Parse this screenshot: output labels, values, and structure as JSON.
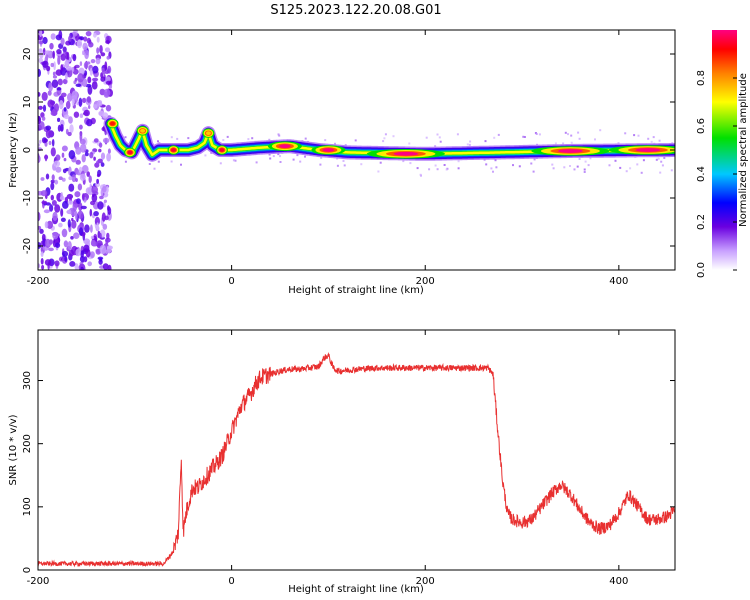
{
  "title": "S125.2023.122.20.08.G01",
  "chart_data": [
    {
      "type": "heatmap",
      "xlabel": "Height of straight line (km)",
      "ylabel": "Frequency (Hz)",
      "xlim": [
        -200,
        458
      ],
      "ylim": [
        -25,
        25
      ],
      "xticks": [
        -200,
        0,
        200,
        400
      ],
      "yticks": [
        -20,
        -10,
        0,
        10,
        20
      ],
      "colorbar": {
        "label": "Normalized spectral amplitude",
        "range": [
          0,
          1
        ],
        "ticks": [
          "0.0",
          "0.2",
          "0.4",
          "0.6",
          "0.8"
        ],
        "colors": [
          "#ffffff",
          "#c8a0ff",
          "#6a00e0",
          "#0000ff",
          "#00c8ff",
          "#00e000",
          "#ffff00",
          "#ff8000",
          "#ff0000",
          "#ff0080"
        ]
      },
      "noise_region_x": [
        -200,
        -125
      ],
      "ridge": [
        {
          "x": -125,
          "y": 5.5
        },
        {
          "x": -120,
          "y": 3
        },
        {
          "x": -115,
          "y": 1
        },
        {
          "x": -110,
          "y": 0
        },
        {
          "x": -103,
          "y": -0.5
        },
        {
          "x": -98,
          "y": 1.5
        },
        {
          "x": -92,
          "y": 4
        },
        {
          "x": -88,
          "y": 1
        },
        {
          "x": -82,
          "y": -1
        },
        {
          "x": -75,
          "y": 0
        },
        {
          "x": -60,
          "y": 0
        },
        {
          "x": -45,
          "y": 0
        },
        {
          "x": -35,
          "y": 0.5
        },
        {
          "x": -28,
          "y": 1.5
        },
        {
          "x": -24,
          "y": 3.5
        },
        {
          "x": -20,
          "y": 1
        },
        {
          "x": -12,
          "y": 0
        },
        {
          "x": 0,
          "y": 0
        },
        {
          "x": 30,
          "y": 0.5
        },
        {
          "x": 60,
          "y": 0.8
        },
        {
          "x": 90,
          "y": 0
        },
        {
          "x": 120,
          "y": -0.5
        },
        {
          "x": 200,
          "y": -0.8
        },
        {
          "x": 280,
          "y": -0.5
        },
        {
          "x": 350,
          "y": -0.2
        },
        {
          "x": 458,
          "y": 0
        }
      ],
      "peaks": [
        {
          "x": -123,
          "y": 5.5,
          "amp": 0.9
        },
        {
          "x": -92,
          "y": 4,
          "amp": 0.75
        },
        {
          "x": -24,
          "y": 3.5,
          "amp": 0.75
        },
        {
          "x": -105,
          "y": -0.5,
          "amp": 0.95
        },
        {
          "x": -60,
          "y": 0,
          "amp": 0.95
        },
        {
          "x": -10,
          "y": 0,
          "amp": 0.95
        },
        {
          "x": 55,
          "y": 0.8,
          "amp": 1.0
        },
        {
          "x": 100,
          "y": 0,
          "amp": 1.0
        },
        {
          "x": 180,
          "y": -0.8,
          "amp": 1.0
        },
        {
          "x": 350,
          "y": -0.2,
          "amp": 1.0
        },
        {
          "x": 430,
          "y": 0,
          "amp": 1.0
        }
      ]
    },
    {
      "type": "line",
      "xlabel": "Height of straight line (km)",
      "ylabel": "SNR (10 * v/v)",
      "xlim": [
        -200,
        458
      ],
      "ylim": [
        0,
        380
      ],
      "xticks": [
        -200,
        0,
        200,
        400
      ],
      "yticks": [
        0,
        100,
        200,
        300
      ],
      "color": "#e83030",
      "series": [
        {
          "x": [
            -200,
            -160,
            -120,
            -90,
            -70,
            -60,
            -55,
            -52,
            -50,
            -47,
            -44,
            -40,
            -35,
            -30,
            -25,
            -20,
            -15,
            -10,
            -5,
            0,
            5,
            10,
            15,
            20,
            25,
            30,
            40,
            50,
            60,
            70,
            80,
            90,
            95,
            100,
            105,
            110,
            130,
            150,
            170,
            190,
            210,
            230,
            250,
            265,
            270,
            275,
            280,
            285,
            290,
            300,
            310,
            320,
            330,
            340,
            350,
            360,
            370,
            380,
            390,
            400,
            410,
            420,
            430,
            440,
            450,
            458
          ],
          "y": [
            10,
            10,
            10,
            10,
            10,
            30,
            60,
            180,
            60,
            90,
            110,
            130,
            130,
            140,
            150,
            160,
            170,
            180,
            200,
            220,
            240,
            260,
            270,
            280,
            295,
            305,
            310,
            315,
            318,
            318,
            320,
            322,
            335,
            340,
            320,
            315,
            318,
            320,
            320,
            320,
            320,
            320,
            320,
            320,
            310,
            220,
            140,
            90,
            80,
            75,
            80,
            100,
            120,
            135,
            120,
            95,
            75,
            65,
            70,
            90,
            120,
            100,
            80,
            80,
            85,
            95
          ]
        }
      ]
    }
  ]
}
